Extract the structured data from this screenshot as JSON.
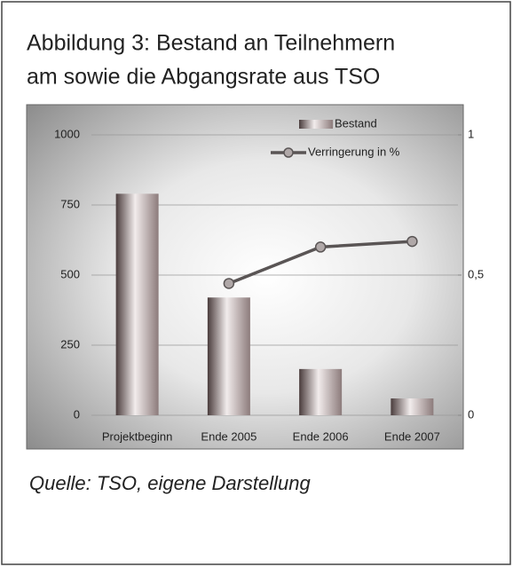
{
  "chart_data": {
    "type": "bar_line",
    "title": [
      "Abbildung 3: Bestand an Teilnehmern",
      "am sowie die Abgangsrate aus TSO"
    ],
    "source": "Quelle: TSO, eigene Darstellung",
    "categories": [
      "Projektbeginn",
      "Ende 2005",
      "Ende 2006",
      "Ende 2007"
    ],
    "series": [
      {
        "name": "Bestand",
        "type": "bar",
        "color": "#8c7b7b",
        "values": [
          790,
          420,
          165,
          60
        ]
      },
      {
        "name": "Verringerung in %",
        "type": "line",
        "axis": "y2",
        "color": "#5a5555",
        "values": [
          null,
          0.47,
          0.6,
          0.62
        ]
      }
    ],
    "ylim": [
      0,
      1000
    ],
    "yticks": [
      0,
      250,
      500,
      750,
      1000
    ],
    "y2lim": [
      0,
      1
    ],
    "y2ticks": [
      0,
      {
        "value": 0.5,
        "label": "0,5"
      },
      1
    ],
    "grid": true,
    "legend": "top-right"
  }
}
